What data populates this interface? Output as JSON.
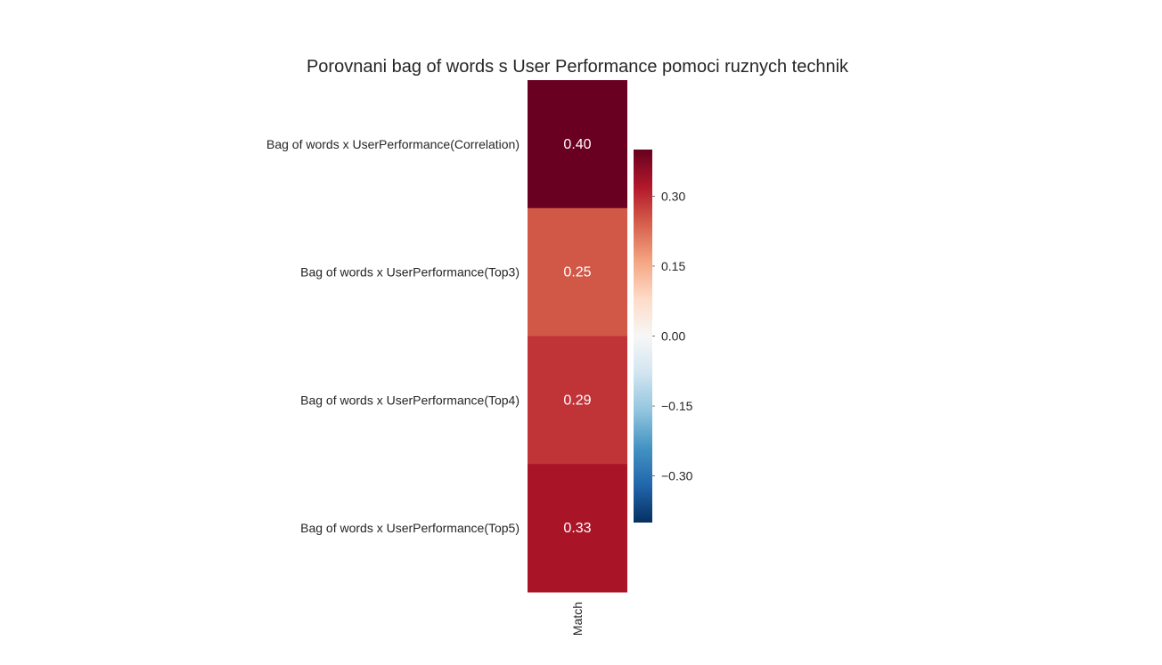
{
  "chart_data": {
    "type": "heatmap",
    "title": "Porovnani bag of words s User Performance pomoci ruznych technik",
    "rows": [
      "Bag of words x UserPerformance(Correlation)",
      "Bag of words x UserPerformance(Top3)",
      "Bag of words x UserPerformance(Top4)",
      "Bag of words x UserPerformance(Top5)"
    ],
    "columns": [
      "Match"
    ],
    "values": [
      [
        0.4
      ],
      [
        0.25
      ],
      [
        0.29
      ],
      [
        0.33
      ]
    ],
    "annotations": [
      [
        "0.40"
      ],
      [
        "0.25"
      ],
      [
        "0.29"
      ],
      [
        "0.33"
      ]
    ],
    "colormap": "RdBu_r",
    "vmin": -0.4,
    "vmax": 0.4,
    "colorbar": {
      "ticks": [
        0.3,
        0.15,
        0.0,
        -0.15,
        -0.3
      ],
      "tick_labels": [
        "0.30",
        "0.15",
        "0.00",
        "−0.15",
        "−0.30"
      ]
    },
    "colors": {
      "cell_0": "#6a0021",
      "cell_1": "#d15847",
      "cell_2": "#c03438",
      "cell_3": "#a91527",
      "cmap_stops": [
        "#053061",
        "#2166ac",
        "#4393c3",
        "#92c5de",
        "#d1e5f0",
        "#f7f7f7",
        "#fddbc7",
        "#f4a582",
        "#d6604d",
        "#b2182b",
        "#67001f"
      ]
    }
  }
}
